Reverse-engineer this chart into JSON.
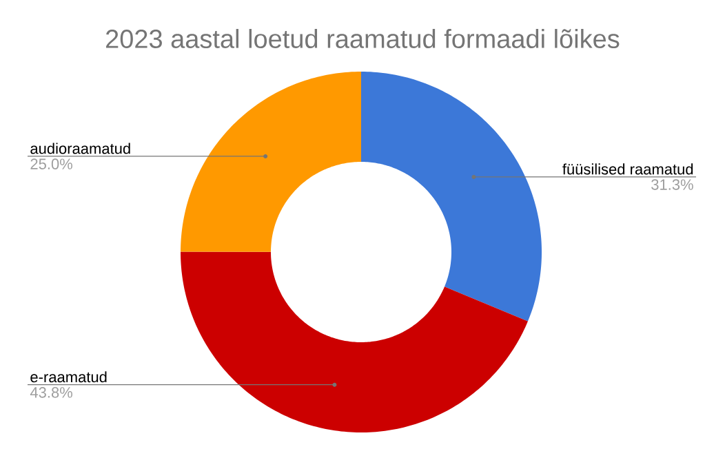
{
  "chart_data": {
    "type": "donut",
    "title": "2023 aastal loetud raamatud formaadi lõikes",
    "categories": [
      "füüsilised raamatud",
      "e-raamatud",
      "audioraamatud"
    ],
    "values": [
      31.3,
      43.8,
      25.0
    ],
    "colors": [
      "#3c78d8",
      "#cc0000",
      "#ff9900"
    ],
    "value_labels": [
      "31.3%",
      "43.8%",
      "25.0%"
    ]
  }
}
